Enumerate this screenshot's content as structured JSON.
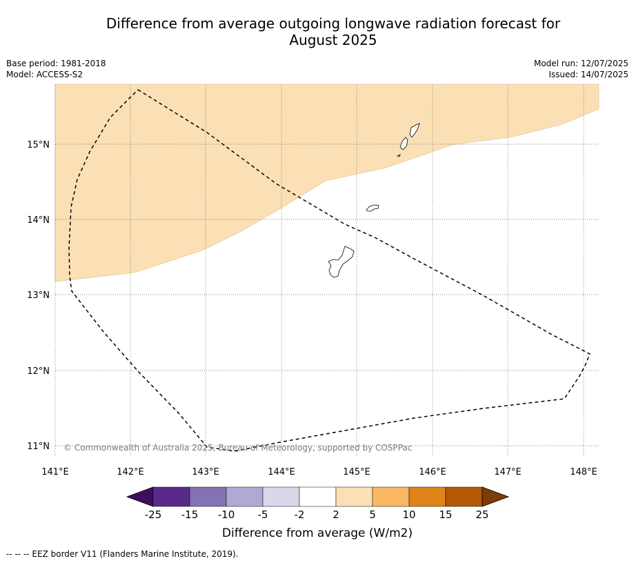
{
  "title": {
    "line1": "Difference from average outgoing longwave radiation forecast for",
    "line2": "August 2025"
  },
  "meta": {
    "base_period": "Base period: 1981-2018",
    "model": "Model: ACCESS-S2",
    "model_run": "Model run: 12/07/2025",
    "issued": "Issued: 14/07/2025"
  },
  "map": {
    "lon_labels": [
      "141°E",
      "142°E",
      "143°E",
      "144°E",
      "145°E",
      "146°E",
      "147°E",
      "148°E"
    ],
    "lat_labels": [
      "15°N",
      "14°N",
      "13°N",
      "12°N",
      "11°N"
    ],
    "copyright": "© Commonwealth of Australia 2025, Bureau of Meteorology, supported by COSPPac",
    "anomaly_fill_color": "#fce0b5",
    "anomaly_fill_range": "2 to 5"
  },
  "colorbar": {
    "label": "Difference from average (W/m2)",
    "ticks": [
      "-25",
      "-15",
      "-10",
      "-5",
      "-2",
      "2",
      "5",
      "10",
      "15",
      "25"
    ],
    "colors": [
      "#3b0f5e",
      "#5a2a8a",
      "#8373b2",
      "#b1a8d3",
      "#d8d8ea",
      "#ffffff",
      "#fce0b5",
      "#fbb864",
      "#e08318",
      "#b35806",
      "#7f3b08"
    ]
  },
  "footer": {
    "eez_note": "--  --  -- EEZ border V11 (Flanders Marine Institute, 2019)."
  }
}
